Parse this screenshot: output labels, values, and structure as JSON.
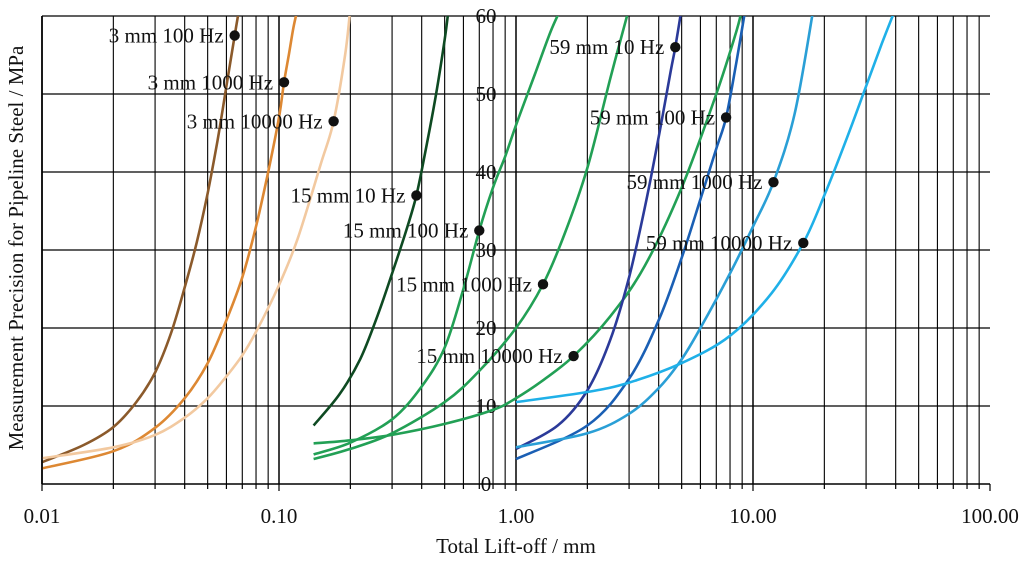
{
  "chart_data": {
    "type": "line",
    "title": "",
    "xlabel": "Total Lift-off / mm",
    "ylabel": "Measurement Precision for Pipeline Steel / MPa",
    "x_scale": "log",
    "xlim": [
      0.01,
      100
    ],
    "ylim": [
      0,
      60
    ],
    "grid": true,
    "legend": "none",
    "x_tick_labels": [
      {
        "value": 0.01,
        "label": "0.01"
      },
      {
        "value": 0.1,
        "label": "0.10"
      },
      {
        "value": 1,
        "label": "1.00"
      },
      {
        "value": 10,
        "label": "10.00"
      },
      {
        "value": 100,
        "label": "100.00"
      }
    ],
    "y_tick_labels": [
      {
        "value": 0,
        "label": "0"
      },
      {
        "value": 10,
        "label": "10"
      },
      {
        "value": 20,
        "label": "20"
      },
      {
        "value": 30,
        "label": "30"
      },
      {
        "value": 40,
        "label": "40"
      },
      {
        "value": 50,
        "label": "50"
      },
      {
        "value": 60,
        "label": "60"
      }
    ],
    "series": [
      {
        "name": "3 mm 100 Hz",
        "color": "#8b5a2b",
        "label_point": {
          "x": 0.065,
          "y": 57.5
        },
        "x": [
          0.01,
          0.015,
          0.02,
          0.025,
          0.03,
          0.035,
          0.04,
          0.045,
          0.05,
          0.055,
          0.06,
          0.065,
          0.068
        ],
        "y": [
          2.8,
          5.0,
          7.3,
          10.5,
          14.3,
          19.3,
          25.2,
          31.0,
          37.3,
          44.0,
          51.0,
          57.5,
          61
        ]
      },
      {
        "name": "3 mm 1000 Hz",
        "color": "#dd8833",
        "label_point": {
          "x": 0.105,
          "y": 51.5
        },
        "x": [
          0.01,
          0.02,
          0.03,
          0.04,
          0.05,
          0.06,
          0.07,
          0.08,
          0.09,
          0.1,
          0.105,
          0.11,
          0.115,
          0.12
        ],
        "y": [
          2.0,
          4.2,
          7.2,
          11.0,
          15.5,
          21.0,
          26.5,
          33.0,
          40.0,
          47.0,
          51.5,
          55.0,
          58.5,
          61
        ]
      },
      {
        "name": "3 mm 10000 Hz",
        "color": "#f2c9a0",
        "label_point": {
          "x": 0.17,
          "y": 46.5
        },
        "x": [
          0.01,
          0.02,
          0.03,
          0.04,
          0.05,
          0.06,
          0.07,
          0.08,
          0.1,
          0.12,
          0.15,
          0.17,
          0.19,
          0.2
        ],
        "y": [
          3.3,
          4.7,
          6.3,
          8.5,
          11.0,
          13.8,
          16.5,
          19.5,
          25.5,
          31.5,
          41.0,
          46.5,
          55.0,
          61
        ]
      },
      {
        "name": "15 mm 10 Hz",
        "color": "#0e4a22",
        "label_point": {
          "x": 0.38,
          "y": 37.0
        },
        "x": [
          0.14,
          0.18,
          0.22,
          0.26,
          0.3,
          0.34,
          0.38,
          0.42,
          0.46,
          0.5,
          0.52
        ],
        "y": [
          7.5,
          11.5,
          16.0,
          21.5,
          27.0,
          32.0,
          37.0,
          43.5,
          50.0,
          57.0,
          61
        ]
      },
      {
        "name": "15 mm 100 Hz",
        "color": "#22a055",
        "label_point": {
          "x": 0.7,
          "y": 32.5
        },
        "x": [
          0.14,
          0.2,
          0.3,
          0.4,
          0.5,
          0.6,
          0.7,
          0.8,
          0.9,
          1.0,
          1.2,
          1.4,
          1.55
        ],
        "y": [
          3.8,
          5.3,
          8.3,
          12.5,
          17.5,
          25.0,
          32.5,
          38.0,
          42.0,
          46.0,
          52.5,
          58.0,
          61
        ]
      },
      {
        "name": "15 mm 1000 Hz",
        "color": "#22a055",
        "label_point": {
          "x": 1.3,
          "y": 25.6
        },
        "x": [
          0.14,
          0.2,
          0.3,
          0.5,
          0.7,
          1.0,
          1.3,
          1.6,
          2.0,
          2.5,
          3.0
        ],
        "y": [
          3.2,
          4.5,
          6.5,
          10.5,
          14.5,
          20.0,
          25.6,
          32.0,
          40.5,
          52.0,
          61
        ]
      },
      {
        "name": "15 mm 10000 Hz",
        "color": "#22a055",
        "label_point": {
          "x": 1.75,
          "y": 16.4
        },
        "x": [
          0.14,
          0.2,
          0.3,
          0.5,
          0.8,
          1.0,
          1.3,
          1.75,
          2.5,
          3.5,
          5.0,
          7.0,
          8.5,
          9.0
        ],
        "y": [
          5.2,
          5.6,
          6.3,
          7.7,
          9.5,
          11.0,
          13.3,
          16.4,
          21.5,
          28.0,
          38.0,
          50.0,
          58.0,
          61
        ]
      },
      {
        "name": "59 mm 10 Hz",
        "color": "#2b3a99",
        "label_point": {
          "x": 4.7,
          "y": 56.0
        },
        "x": [
          1.0,
          1.5,
          2.0,
          2.5,
          3.0,
          3.5,
          4.0,
          4.5,
          4.7,
          5.0
        ],
        "y": [
          4.5,
          7.5,
          12.0,
          18.5,
          26.5,
          35.5,
          44.5,
          53.0,
          56.0,
          61
        ]
      },
      {
        "name": "59 mm 100 Hz",
        "color": "#1a5fb4",
        "label_point": {
          "x": 7.7,
          "y": 47.0
        },
        "x": [
          1.0,
          2.0,
          3.0,
          4.0,
          5.0,
          6.0,
          7.0,
          7.7,
          8.5,
          9.3
        ],
        "y": [
          3.2,
          7.5,
          13.5,
          21.0,
          29.0,
          36.5,
          43.0,
          47.0,
          54.0,
          61
        ]
      },
      {
        "name": "59 mm 1000 Hz",
        "color": "#2a9fd6",
        "label_point": {
          "x": 12.2,
          "y": 38.7
        },
        "x": [
          1.0,
          2.0,
          3.0,
          4.0,
          5.0,
          6.0,
          8.0,
          10.0,
          12.2,
          15.0,
          18.0
        ],
        "y": [
          4.7,
          6.5,
          9.0,
          12.3,
          16.0,
          20.0,
          27.0,
          33.0,
          38.7,
          47.5,
          61
        ]
      },
      {
        "name": "59 mm 10000 Hz",
        "color": "#1fb0e8",
        "label_point": {
          "x": 16.3,
          "y": 30.9
        },
        "x": [
          1.0,
          2.0,
          3.0,
          5.0,
          8.0,
          12.0,
          16.3,
          20.0,
          25.0,
          30.0,
          35.0,
          40.0
        ],
        "y": [
          10.5,
          11.8,
          13.0,
          15.5,
          19.0,
          24.5,
          30.9,
          37.0,
          44.5,
          51.0,
          56.5,
          61
        ]
      }
    ],
    "annotations": [
      {
        "text": "3 mm 100 Hz",
        "series": 0
      },
      {
        "text": "3 mm 1000 Hz",
        "series": 1
      },
      {
        "text": "3 mm 10000 Hz",
        "series": 2
      },
      {
        "text": "15 mm 10 Hz",
        "series": 3
      },
      {
        "text": "15 mm 100 Hz",
        "series": 4
      },
      {
        "text": "15 mm 1000 Hz",
        "series": 5
      },
      {
        "text": "15 mm 10000 Hz",
        "series": 6
      },
      {
        "text": "59 mm 10 Hz",
        "series": 7
      },
      {
        "text": "59 mm 100 Hz",
        "series": 8
      },
      {
        "text": "59 mm 1000 Hz",
        "series": 9
      },
      {
        "text": "59 mm 10000 Hz",
        "series": 10
      }
    ]
  }
}
